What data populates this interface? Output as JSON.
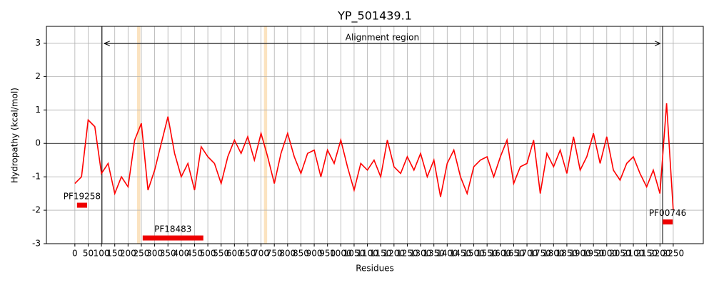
{
  "chart_data": {
    "type": "line",
    "title": "YP_501439.1",
    "xlabel": "Residues",
    "ylabel": "Hydropathy (kcal/mol)",
    "x": [
      0,
      25,
      50,
      75,
      100,
      125,
      150,
      175,
      200,
      225,
      250,
      275,
      300,
      325,
      350,
      375,
      400,
      425,
      450,
      475,
      500,
      525,
      550,
      575,
      600,
      625,
      650,
      675,
      700,
      725,
      750,
      775,
      800,
      825,
      850,
      875,
      900,
      925,
      950,
      975,
      1000,
      1025,
      1050,
      1075,
      1100,
      1125,
      1150,
      1175,
      1200,
      1225,
      1250,
      1275,
      1300,
      1325,
      1350,
      1375,
      1400,
      1425,
      1450,
      1475,
      1500,
      1525,
      1550,
      1575,
      1600,
      1625,
      1650,
      1675,
      1700,
      1725,
      1750,
      1775,
      1800,
      1825,
      1850,
      1875,
      1900,
      1925,
      1950,
      1975,
      2000,
      2025,
      2050,
      2075,
      2100,
      2125,
      2150,
      2175,
      2200,
      2225,
      2250
    ],
    "series": [
      {
        "color": "#ff0000",
        "values": [
          -1.2,
          -1.0,
          0.7,
          0.5,
          -0.9,
          -0.6,
          -1.5,
          -1.0,
          -1.3,
          0.1,
          0.6,
          -1.4,
          -0.8,
          0.0,
          0.8,
          -0.3,
          -1.0,
          -0.6,
          -1.4,
          -0.1,
          -0.4,
          -0.6,
          -1.2,
          -0.4,
          0.1,
          -0.3,
          0.2,
          -0.5,
          0.3,
          -0.4,
          -1.2,
          -0.3,
          0.3,
          -0.4,
          -0.9,
          -0.3,
          -0.2,
          -1.0,
          -0.2,
          -0.6,
          0.1,
          -0.7,
          -1.4,
          -0.6,
          -0.8,
          -0.5,
          -1.0,
          0.1,
          -0.7,
          -0.9,
          -0.4,
          -0.8,
          -0.3,
          -1.0,
          -0.5,
          -1.6,
          -0.6,
          -0.2,
          -1.0,
          -1.5,
          -0.7,
          -0.5,
          -0.4,
          -1.0,
          -0.4,
          0.1,
          -1.2,
          -0.7,
          -0.6,
          0.1,
          -1.5,
          -0.3,
          -0.7,
          -0.2,
          -0.9,
          0.2,
          -0.8,
          -0.4,
          0.3,
          -0.6,
          0.2,
          -0.8,
          -1.1,
          -0.6,
          -0.4,
          -0.9,
          -1.3,
          -0.8,
          -1.5,
          1.2,
          -2.0
        ]
      }
    ],
    "xlim": [
      -107,
      2363
    ],
    "ylim": [
      -3,
      3.5
    ],
    "xticks": [
      0,
      50,
      100,
      150,
      200,
      250,
      300,
      350,
      400,
      450,
      500,
      550,
      600,
      650,
      700,
      750,
      800,
      850,
      900,
      950,
      1000,
      1050,
      1100,
      1150,
      1200,
      1250,
      1300,
      1350,
      1400,
      1450,
      1500,
      1550,
      1600,
      1650,
      1700,
      1750,
      1800,
      1850,
      1900,
      1950,
      2000,
      2050,
      2100,
      2150,
      2200,
      2250
    ],
    "yticks": [
      -3,
      -2,
      -1,
      0,
      1,
      2,
      3
    ],
    "grid": true,
    "alignment_region": {
      "label": "Alignment region",
      "start": 102,
      "end": 2210
    },
    "highlights": {
      "color": "#fbe3c0",
      "ranges": [
        [
          234,
          246
        ],
        [
          711,
          723
        ]
      ]
    },
    "domains": {
      "color": "#ee0000",
      "items": [
        {
          "label": "PF19258",
          "start": 8,
          "end": 46,
          "y": -1.85
        },
        {
          "label": "PF18483",
          "start": 255,
          "end": 483,
          "y": -2.83
        },
        {
          "label": "PF00746",
          "start": 2210,
          "end": 2248,
          "y": -2.35
        }
      ]
    }
  }
}
